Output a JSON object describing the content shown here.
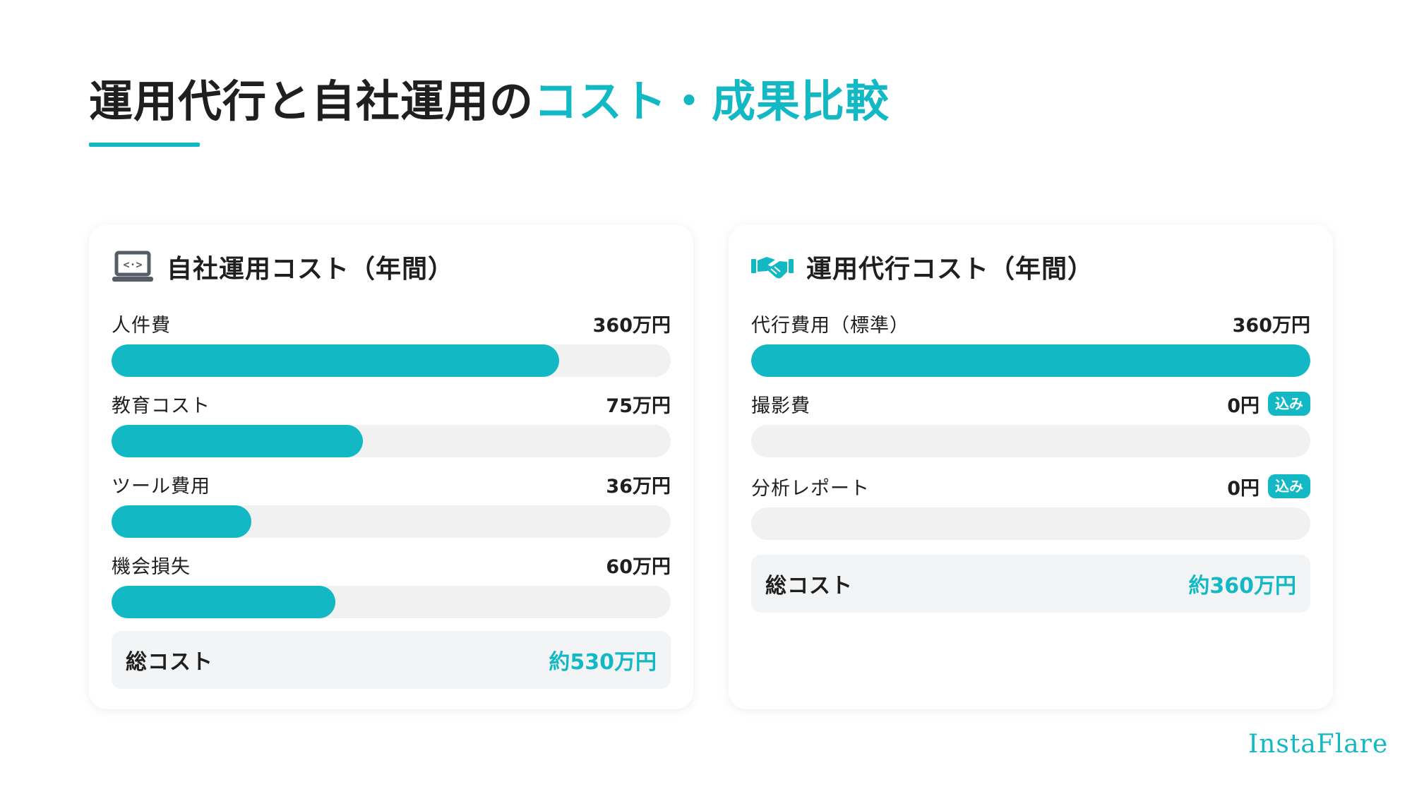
{
  "title": {
    "main": "運用代行と自社運用の",
    "accent": "コスト・成果比較"
  },
  "colors": {
    "accent": "#12b9c5",
    "track": "#f1f1f1",
    "total_bg": "#f3f4f5"
  },
  "cards": [
    {
      "icon": "laptop-code-icon",
      "title": "自社運用コスト（年間）",
      "items": [
        {
          "label": "人件費",
          "value": "360万円",
          "fill": 0.8
        },
        {
          "label": "教育コスト",
          "value": "75万円",
          "fill": 0.45
        },
        {
          "label": "ツール費用",
          "value": "36万円",
          "fill": 0.25
        },
        {
          "label": "機会損失",
          "value": "60万円",
          "fill": 0.4
        }
      ],
      "total": {
        "label": "総コスト",
        "value": "約530万円"
      }
    },
    {
      "icon": "handshake-icon",
      "title": "運用代行コスト（年間）",
      "items": [
        {
          "label": "代行費用（標準）",
          "value": "360万円",
          "fill": 1.0,
          "badge": ""
        },
        {
          "label": "撮影費",
          "value": "0円",
          "fill": 0,
          "badge": "込み"
        },
        {
          "label": "分析レポート",
          "value": "0円",
          "fill": 0,
          "badge": "込み"
        }
      ],
      "total": {
        "label": "総コスト",
        "value": "約360万円"
      }
    }
  ],
  "brand": "InstaFlare"
}
